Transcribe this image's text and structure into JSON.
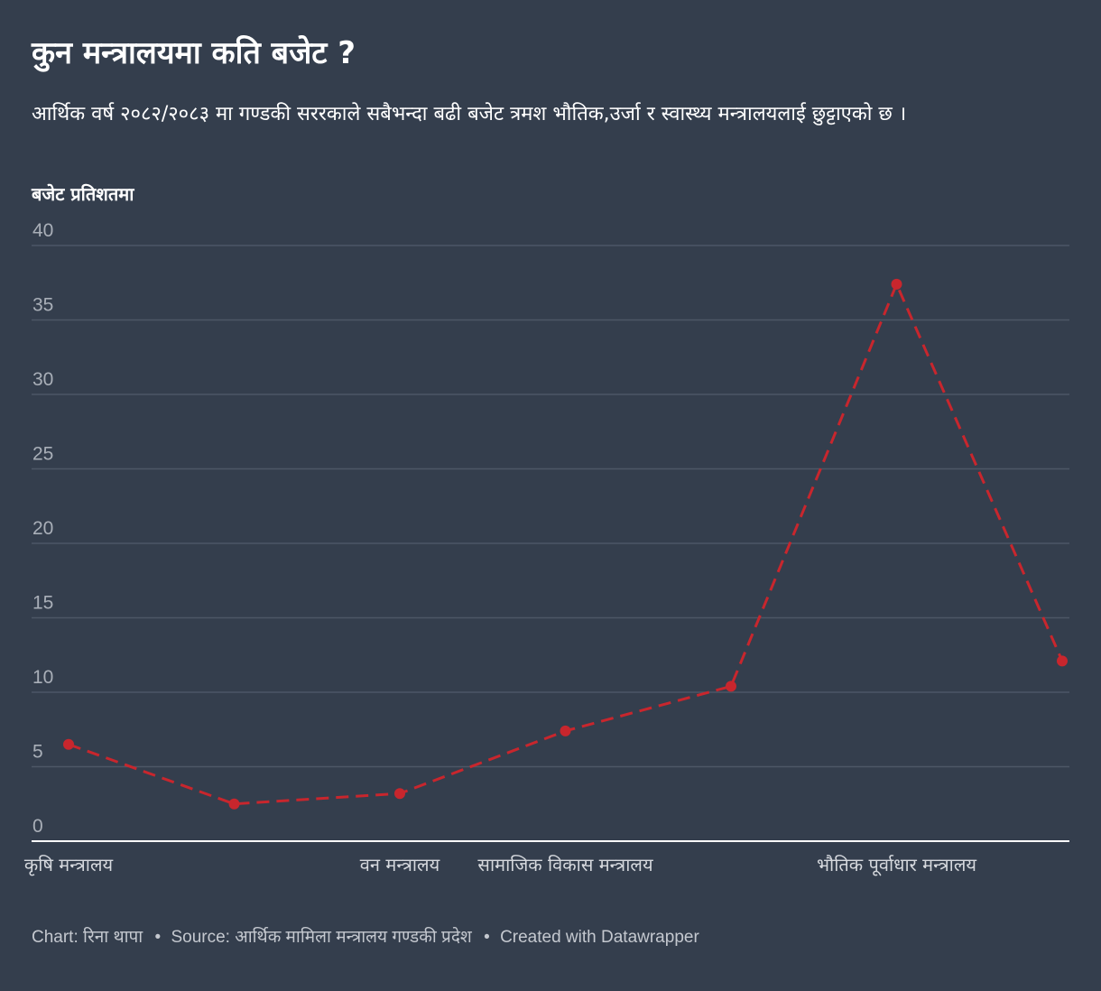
{
  "header": {
    "title": "कुन मन्त्रालयमा कति बजेट ?",
    "subtitle": "आर्थिक वर्ष २०८२/२०८३ मा गण्डकी सररकाले सबैभन्दा बढी बजेट त्रमश भौतिक,उर्जा र स्वास्थ्य मन्त्रालयलाई छुट्टाएको छ ।"
  },
  "footer": {
    "chart_credit": "Chart: रिना थापा",
    "source": "Source: आर्थिक मामिला मन्त्रालय गण्डकी प्रदेश",
    "created_with": "Created with Datawrapper",
    "separator": "•"
  },
  "colors": {
    "background": "#343e4d",
    "line": "#c8262d",
    "grid": "#4d5766",
    "axis": "#ffffff",
    "tick_text": "#a9afb8"
  },
  "chart_data": {
    "type": "line",
    "ylabel": "बजेट प्रतिशतमा",
    "xlabel": "",
    "ylim": [
      0,
      40
    ],
    "yticks": [
      0,
      5,
      10,
      15,
      20,
      25,
      30,
      35,
      40
    ],
    "grid": true,
    "line_style": "dashed",
    "x": [
      "कृषि मन्त्रालय",
      "",
      "वन मन्त्रालय",
      "सामाजिक विकास मन्त्रालय",
      "",
      "भौतिक पूर्वाधार मन्त्रालय",
      ""
    ],
    "series": [
      {
        "values": [
          6.5,
          2.5,
          3.2,
          7.4,
          10.4,
          37.4,
          12.1
        ]
      }
    ]
  }
}
